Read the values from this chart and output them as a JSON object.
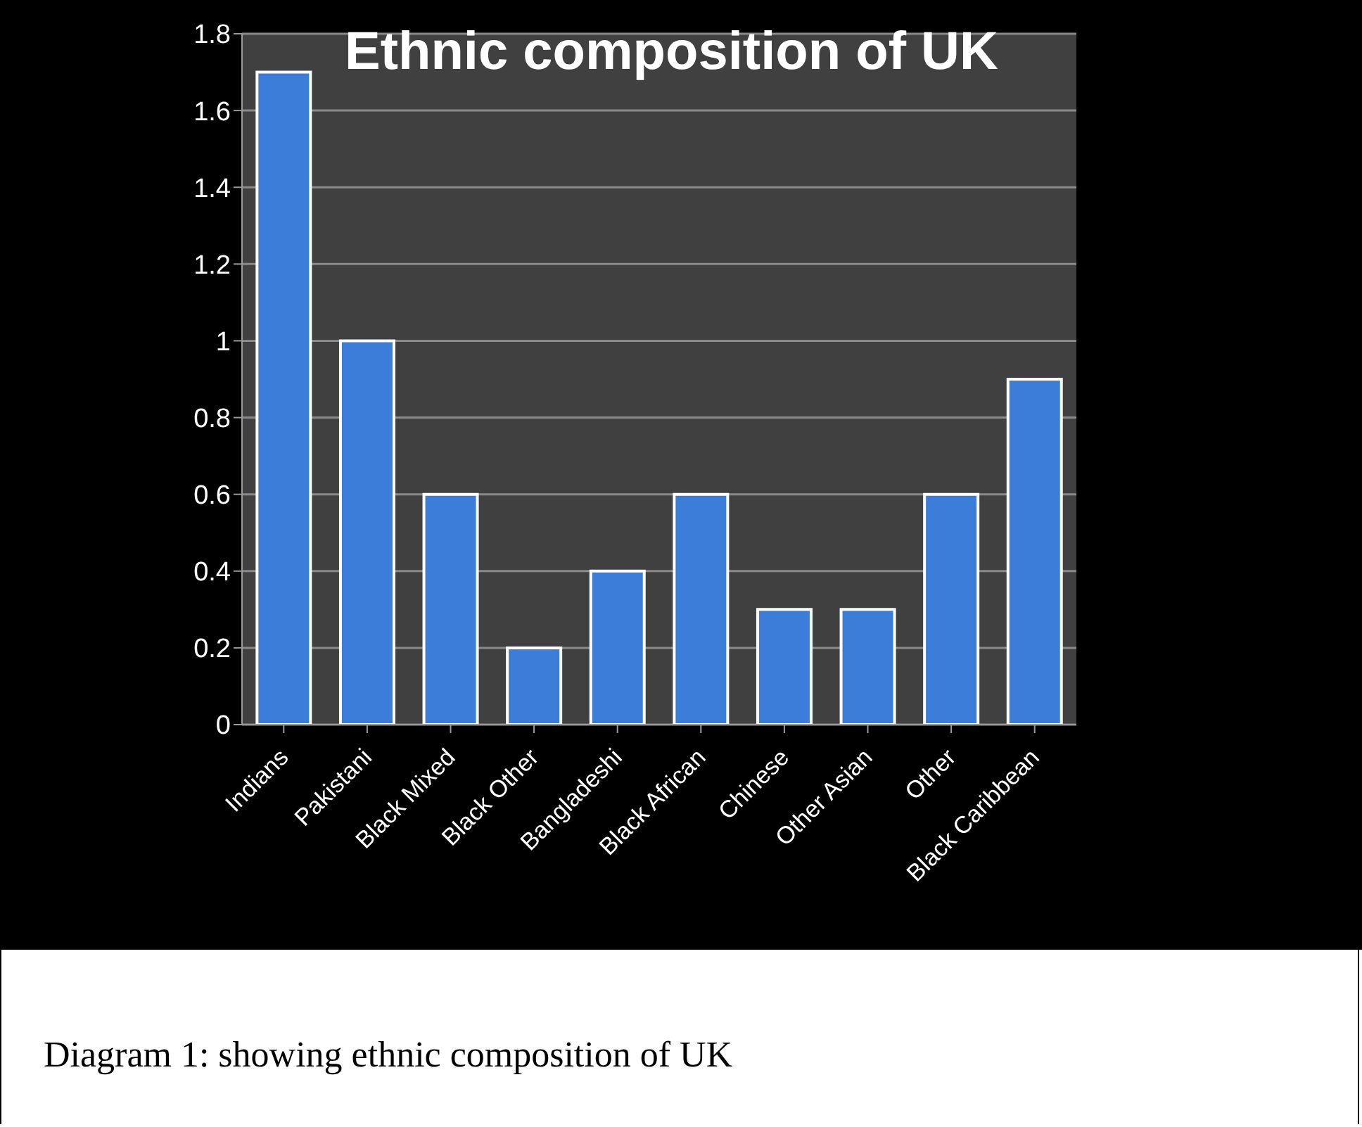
{
  "chart_data": {
    "type": "bar",
    "title": "Ethnic composition of UK",
    "categories": [
      "Indians",
      "Pakistani",
      "Black Mixed",
      "Black Other",
      "Bangladeshi",
      "Black African",
      "Chinese",
      "Other Asian",
      "Other",
      "Black Caribbean"
    ],
    "values": [
      1.7,
      1.0,
      0.6,
      0.2,
      0.4,
      0.6,
      0.3,
      0.3,
      0.6,
      0.9
    ],
    "color": "#3b7dd8",
    "ylim": [
      0,
      1.8
    ],
    "yticks": [
      0,
      0.2,
      0.4,
      0.6,
      0.8,
      1,
      1.2,
      1.4,
      1.6,
      1.8
    ],
    "grid": "y",
    "annotations": [
      "Diagram 1: showing ethnic composition of UK"
    ]
  }
}
